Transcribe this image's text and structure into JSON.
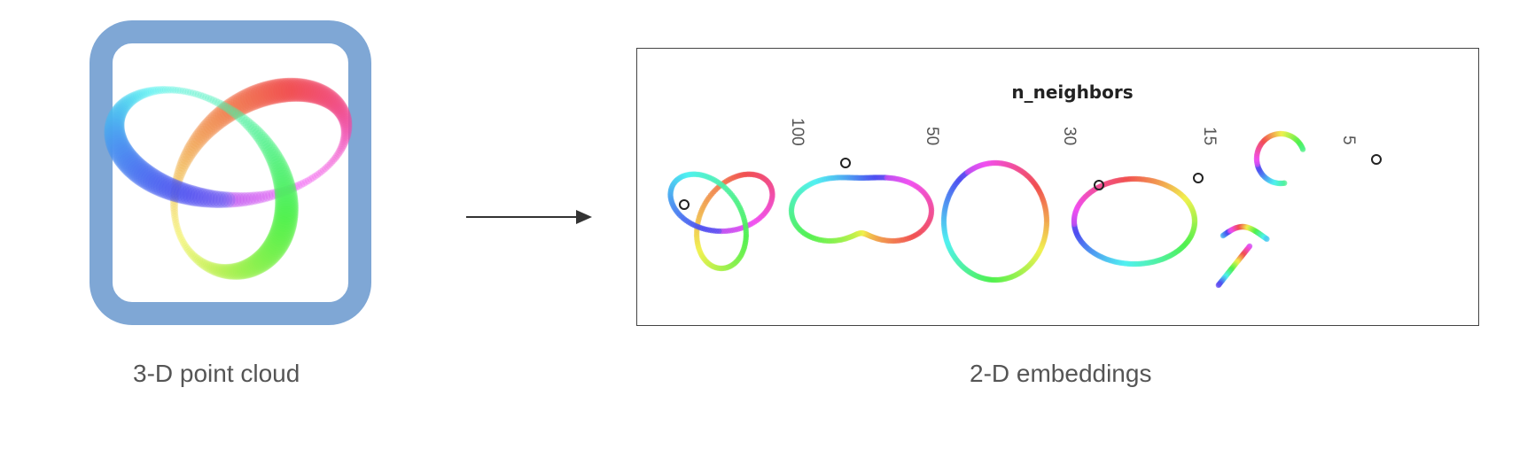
{
  "left_panel": {
    "caption": "3-D point cloud"
  },
  "right_panel": {
    "caption": "2-D embeddings",
    "title": "n_neighbors",
    "neighbor_values": [
      "100",
      "50",
      "30",
      "15",
      "5"
    ]
  },
  "colors": {
    "frame_blue": "#7fa7d5",
    "panel_border": "#444444",
    "caption_gray": "#555555"
  },
  "icons": {
    "arrow": "right-arrow-icon"
  }
}
